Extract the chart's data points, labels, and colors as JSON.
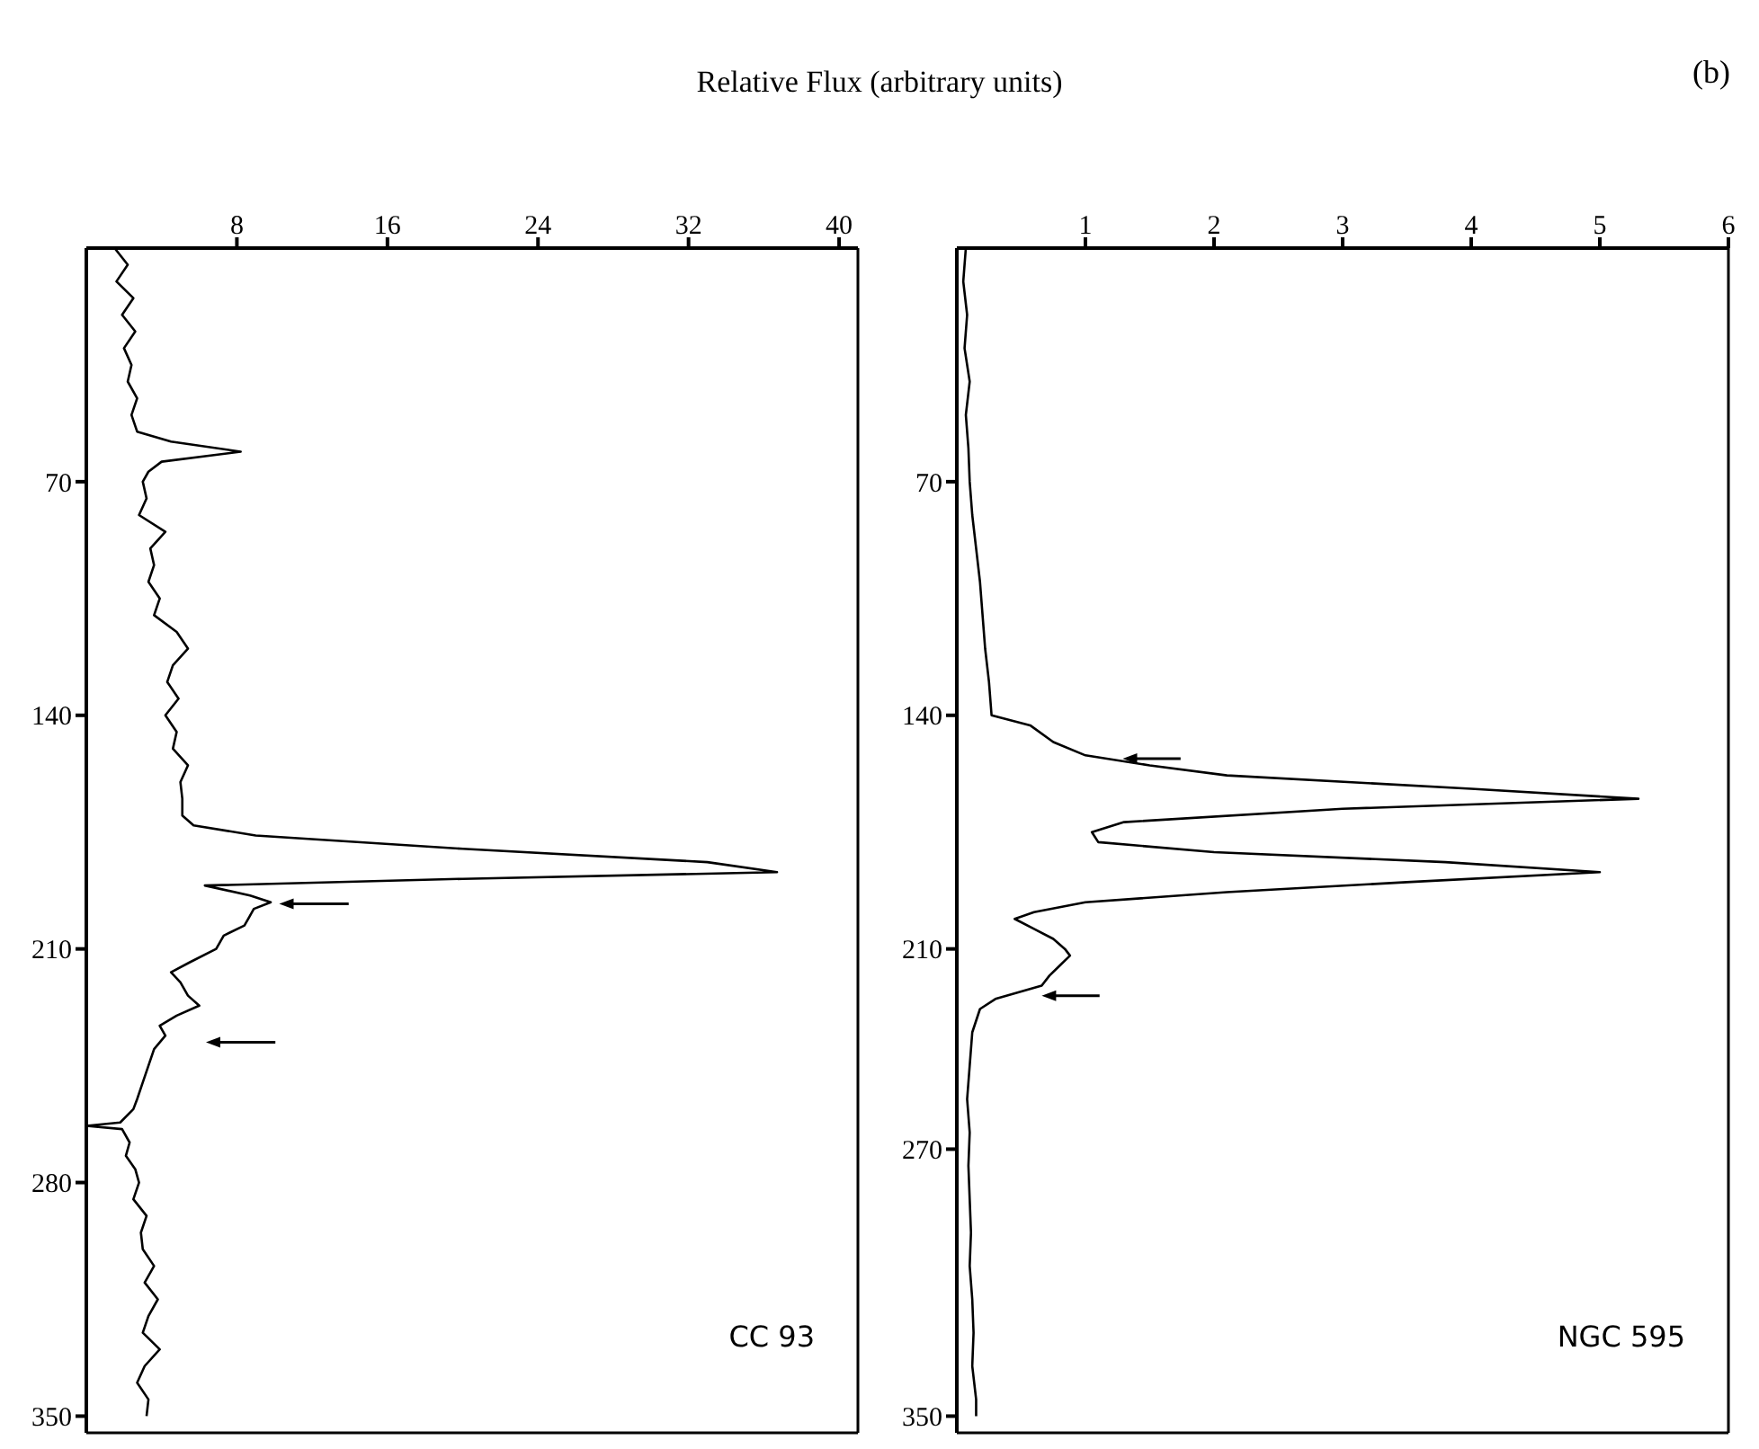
{
  "chart_data": [
    {
      "type": "line",
      "orientation": "horizontal",
      "xlabel": "Relative Flux (arbitrary units)",
      "xlim": [
        0,
        41
      ],
      "xticks": [
        8,
        16,
        24,
        32,
        40
      ],
      "ylim": [
        355,
        0
      ],
      "yticks": [
        70,
        140,
        210,
        280,
        350
      ],
      "series": [
        {
          "name": "CC 93",
          "color": "#000000",
          "x": [
            0,
            5,
            10,
            15,
            20,
            25,
            30,
            35,
            40,
            45,
            50,
            55,
            58,
            61,
            64,
            67,
            70,
            75,
            80,
            85,
            90,
            95,
            100,
            105,
            110,
            115,
            120,
            125,
            130,
            135,
            140,
            145,
            150,
            155,
            160,
            165,
            170,
            173,
            176,
            180,
            184,
            187,
            189,
            191,
            194,
            196,
            198,
            200,
            203,
            206,
            210,
            214,
            217,
            220,
            224,
            227,
            230,
            233,
            236,
            240,
            245,
            250,
            255,
            258,
            262,
            263,
            264,
            268,
            272,
            276,
            280,
            285,
            290,
            295,
            300,
            305,
            310,
            315,
            320,
            325,
            330,
            335,
            340,
            345,
            350
          ],
          "values": [
            1.5,
            2.2,
            1.6,
            2.5,
            1.9,
            2.6,
            2.0,
            2.4,
            2.2,
            2.7,
            2.4,
            2.7,
            4.5,
            8.2,
            4.0,
            3.3,
            3.0,
            3.2,
            2.8,
            4.2,
            3.4,
            3.6,
            3.3,
            3.9,
            3.6,
            4.8,
            5.4,
            4.6,
            4.3,
            4.9,
            4.2,
            4.8,
            4.6,
            5.4,
            5.0,
            5.1,
            5.1,
            5.7,
            9,
            20,
            33,
            36.7,
            20,
            6.3,
            8.7,
            9.8,
            8.9,
            8.7,
            8.4,
            7.3,
            6.9,
            5.5,
            4.5,
            5.0,
            5.4,
            6.0,
            4.8,
            3.9,
            4.2,
            3.6,
            3.3,
            3.0,
            2.7,
            2.5,
            1.8,
            0,
            1.9,
            2.3,
            2.1,
            2.6,
            2.8,
            2.5,
            3.2,
            2.9,
            3.0,
            3.6,
            3.1,
            3.8,
            3.3,
            3.0,
            3.9,
            3.1,
            2.7,
            3.3,
            3.2
          ]
        }
      ]
    },
    {
      "type": "line",
      "orientation": "horizontal",
      "annotations": [
        "(b)"
      ],
      "xlim": [
        0,
        6
      ],
      "xticks": [
        1,
        2,
        3,
        4,
        5,
        6
      ],
      "ylim": [
        355,
        0
      ],
      "yticks": [
        70,
        140,
        210,
        270,
        350
      ],
      "series": [
        {
          "name": "NGC 595",
          "color": "#000000",
          "x": [
            0,
            10,
            20,
            30,
            40,
            50,
            60,
            70,
            80,
            90,
            100,
            110,
            120,
            130,
            140,
            143,
            148,
            152,
            155,
            158,
            162,
            165,
            168,
            172,
            175,
            178,
            181,
            184,
            187,
            190,
            193,
            196,
            199,
            201,
            204,
            207,
            210,
            212,
            215,
            218,
            221,
            225,
            228,
            235,
            245,
            255,
            265,
            275,
            285,
            295,
            305,
            315,
            325,
            335,
            345,
            350
          ],
          "values": [
            0.07,
            0.05,
            0.08,
            0.06,
            0.1,
            0.07,
            0.09,
            0.1,
            0.12,
            0.15,
            0.18,
            0.2,
            0.22,
            0.25,
            0.27,
            0.57,
            0.75,
            1.0,
            1.5,
            2.1,
            4.0,
            5.3,
            3.0,
            1.3,
            1.05,
            1.1,
            2.0,
            3.8,
            5.0,
            3.5,
            2.1,
            1.0,
            0.6,
            0.45,
            0.6,
            0.75,
            0.84,
            0.88,
            0.8,
            0.72,
            0.66,
            0.3,
            0.18,
            0.12,
            0.1,
            0.08,
            0.1,
            0.09,
            0.1,
            0.11,
            0.1,
            0.12,
            0.13,
            0.12,
            0.15,
            0.15
          ]
        }
      ]
    }
  ]
}
